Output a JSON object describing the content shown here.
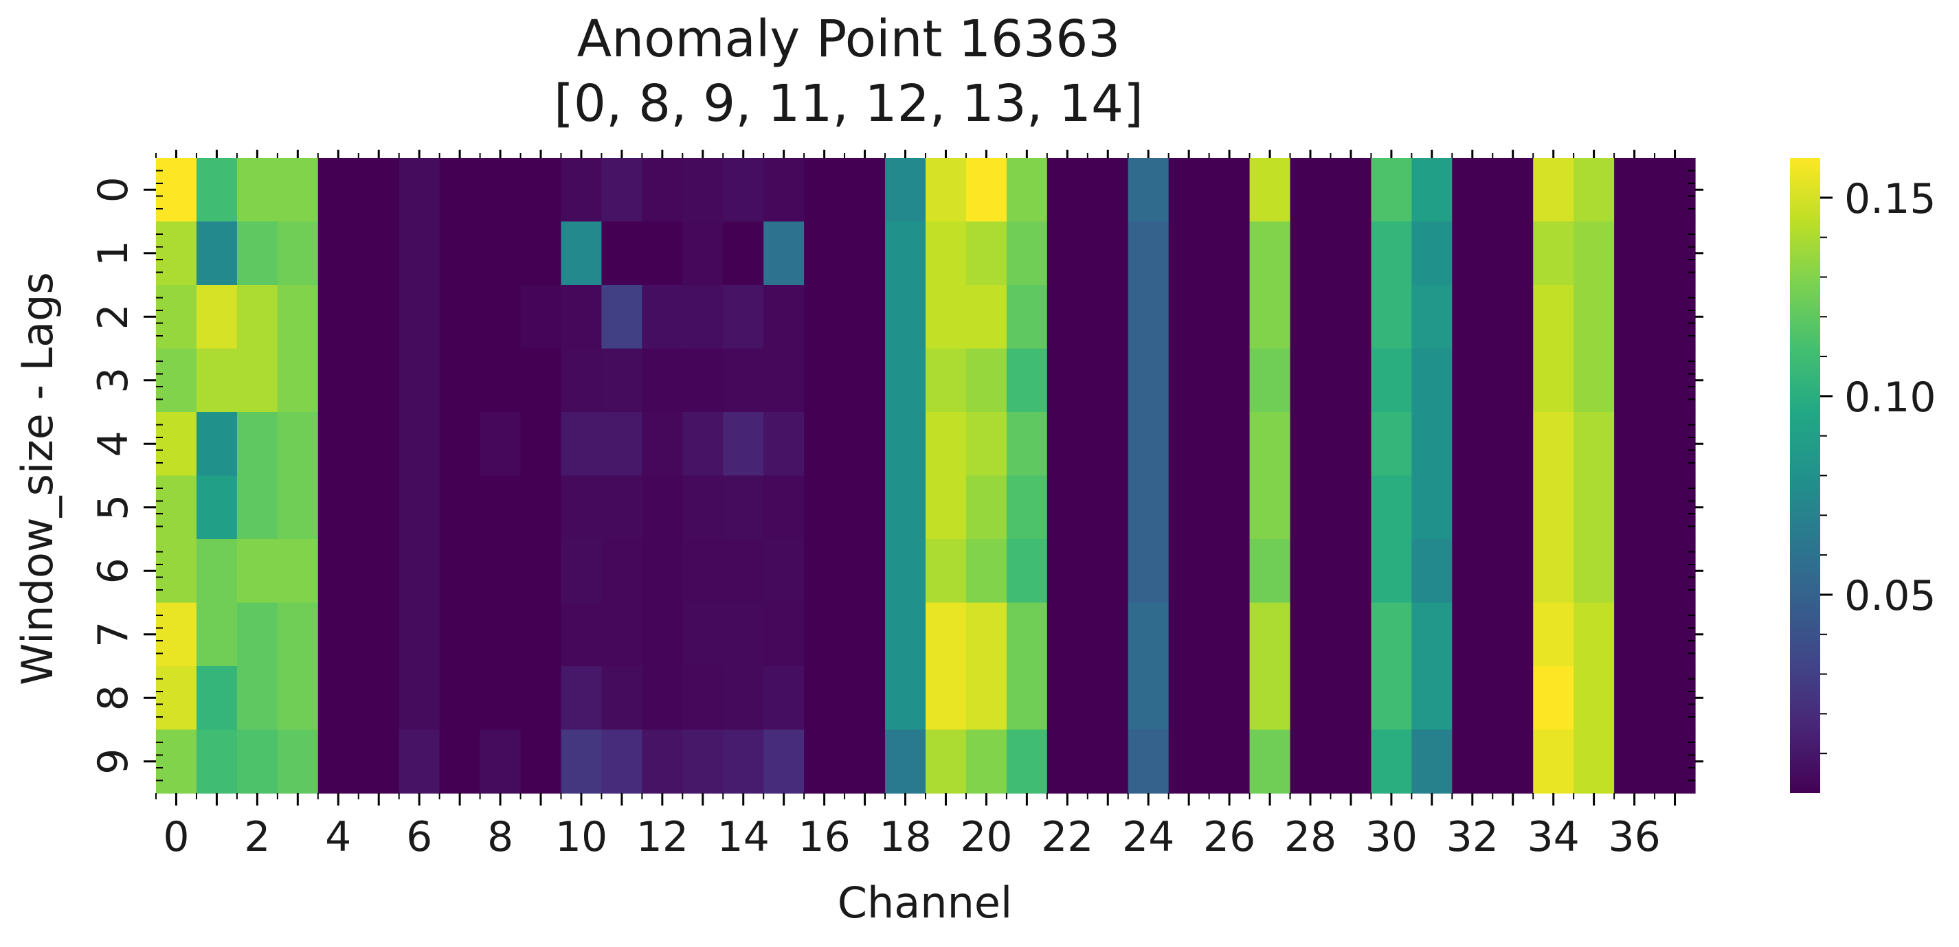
{
  "chart_data": {
    "type": "heatmap",
    "title": "Anomaly Point 16363",
    "subtitle": "[0, 8, 9, 11, 12, 13, 14]",
    "xlabel": "Channel",
    "ylabel": "Window_size - Lags",
    "x_ticks": [
      0,
      2,
      4,
      6,
      8,
      10,
      12,
      14,
      16,
      18,
      20,
      22,
      24,
      26,
      28,
      30,
      32,
      34,
      36
    ],
    "y_ticks": [
      0,
      1,
      2,
      3,
      4,
      5,
      6,
      7,
      8,
      9
    ],
    "n_cols": 38,
    "n_rows": 10,
    "colormap": "viridis",
    "vmin": 0.0,
    "vmax": 0.16,
    "colorbar_ticks": [
      0.05,
      0.1,
      0.15
    ],
    "colorbar_tick_labels": [
      "0.05",
      "0.10",
      "0.15"
    ],
    "values": [
      [
        0.16,
        0.11,
        0.13,
        0.13,
        0.0,
        0.0,
        0.005,
        0.0,
        0.0,
        0.0,
        0.004,
        0.008,
        0.003,
        0.004,
        0.006,
        0.003,
        0.0,
        0.0,
        0.075,
        0.15,
        0.16,
        0.13,
        0.0,
        0.0,
        0.055,
        0.0,
        0.0,
        0.145,
        0.0,
        0.0,
        0.115,
        0.09,
        0.0,
        0.0,
        0.15,
        0.14,
        0.0,
        0.0
      ],
      [
        0.14,
        0.075,
        0.12,
        0.125,
        0.0,
        0.0,
        0.005,
        0.0,
        0.0,
        0.0,
        0.075,
        0.0,
        0.0,
        0.003,
        0.0,
        0.06,
        0.0,
        0.0,
        0.08,
        0.145,
        0.14,
        0.125,
        0.0,
        0.0,
        0.05,
        0.0,
        0.0,
        0.13,
        0.0,
        0.0,
        0.105,
        0.08,
        0.0,
        0.0,
        0.14,
        0.135,
        0.0,
        0.0
      ],
      [
        0.135,
        0.15,
        0.14,
        0.13,
        0.0,
        0.0,
        0.005,
        0.0,
        0.0,
        0.002,
        0.003,
        0.03,
        0.006,
        0.006,
        0.008,
        0.003,
        0.0,
        0.0,
        0.08,
        0.145,
        0.145,
        0.12,
        0.0,
        0.0,
        0.05,
        0.0,
        0.0,
        0.13,
        0.0,
        0.0,
        0.105,
        0.085,
        0.0,
        0.0,
        0.145,
        0.135,
        0.0,
        0.0
      ],
      [
        0.13,
        0.14,
        0.14,
        0.13,
        0.0,
        0.0,
        0.005,
        0.0,
        0.0,
        0.0,
        0.004,
        0.005,
        0.002,
        0.002,
        0.003,
        0.003,
        0.0,
        0.0,
        0.08,
        0.14,
        0.135,
        0.11,
        0.0,
        0.0,
        0.05,
        0.0,
        0.0,
        0.125,
        0.0,
        0.0,
        0.1,
        0.08,
        0.0,
        0.0,
        0.145,
        0.135,
        0.0,
        0.0
      ],
      [
        0.145,
        0.08,
        0.12,
        0.125,
        0.0,
        0.0,
        0.005,
        0.0,
        0.003,
        0.0,
        0.01,
        0.01,
        0.003,
        0.008,
        0.016,
        0.008,
        0.0,
        0.0,
        0.08,
        0.145,
        0.14,
        0.12,
        0.0,
        0.0,
        0.05,
        0.0,
        0.0,
        0.13,
        0.0,
        0.0,
        0.105,
        0.08,
        0.0,
        0.0,
        0.15,
        0.14,
        0.0,
        0.0
      ],
      [
        0.135,
        0.09,
        0.12,
        0.125,
        0.0,
        0.0,
        0.005,
        0.0,
        0.0,
        0.0,
        0.004,
        0.004,
        0.002,
        0.004,
        0.005,
        0.003,
        0.0,
        0.0,
        0.08,
        0.145,
        0.135,
        0.115,
        0.0,
        0.0,
        0.05,
        0.0,
        0.0,
        0.13,
        0.0,
        0.0,
        0.1,
        0.08,
        0.0,
        0.0,
        0.15,
        0.14,
        0.0,
        0.0
      ],
      [
        0.135,
        0.125,
        0.13,
        0.13,
        0.0,
        0.0,
        0.005,
        0.0,
        0.0,
        0.0,
        0.005,
        0.003,
        0.002,
        0.003,
        0.003,
        0.004,
        0.0,
        0.0,
        0.08,
        0.14,
        0.13,
        0.11,
        0.0,
        0.0,
        0.05,
        0.0,
        0.0,
        0.125,
        0.0,
        0.0,
        0.1,
        0.075,
        0.0,
        0.0,
        0.15,
        0.14,
        0.0,
        0.0
      ],
      [
        0.155,
        0.125,
        0.12,
        0.125,
        0.0,
        0.0,
        0.005,
        0.0,
        0.0,
        0.0,
        0.003,
        0.003,
        0.002,
        0.004,
        0.004,
        0.003,
        0.0,
        0.0,
        0.08,
        0.155,
        0.15,
        0.125,
        0.0,
        0.0,
        0.055,
        0.0,
        0.0,
        0.14,
        0.0,
        0.0,
        0.11,
        0.085,
        0.0,
        0.0,
        0.155,
        0.145,
        0.0,
        0.0
      ],
      [
        0.15,
        0.105,
        0.12,
        0.125,
        0.0,
        0.0,
        0.005,
        0.0,
        0.0,
        0.0,
        0.01,
        0.005,
        0.002,
        0.003,
        0.004,
        0.006,
        0.0,
        0.0,
        0.08,
        0.155,
        0.15,
        0.125,
        0.0,
        0.0,
        0.055,
        0.0,
        0.0,
        0.14,
        0.0,
        0.0,
        0.11,
        0.085,
        0.0,
        0.0,
        0.16,
        0.145,
        0.0,
        0.0
      ],
      [
        0.13,
        0.11,
        0.115,
        0.12,
        0.0,
        0.0,
        0.008,
        0.0,
        0.005,
        0.0,
        0.025,
        0.02,
        0.008,
        0.01,
        0.012,
        0.02,
        0.0,
        0.0,
        0.065,
        0.14,
        0.13,
        0.11,
        0.0,
        0.0,
        0.05,
        0.0,
        0.0,
        0.125,
        0.0,
        0.0,
        0.1,
        0.07,
        0.0,
        0.0,
        0.155,
        0.145,
        0.0,
        0.0
      ]
    ]
  }
}
